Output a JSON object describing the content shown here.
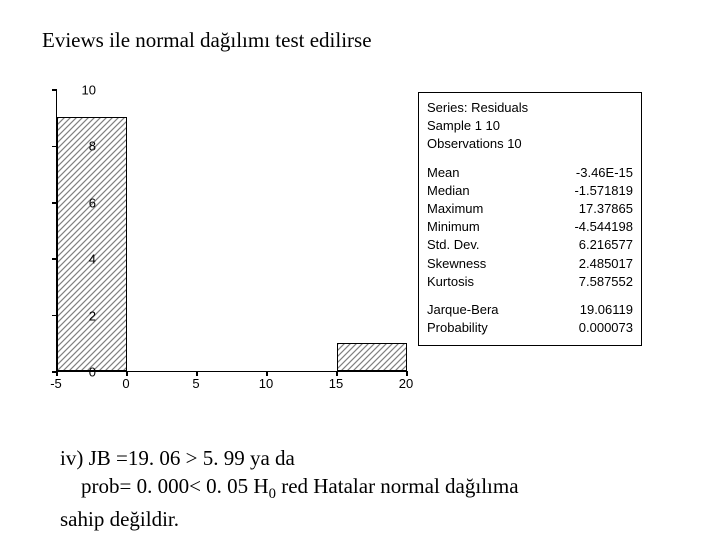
{
  "title_text": "Eviews ile normal dağılımı test edilirse",
  "chart": {
    "type": "histogram",
    "background_color": "#ffffff",
    "axis_color": "#000000",
    "bar_border_color": "#000000",
    "bar_fill_pattern": "diagonal-hatch",
    "bar_fill_light": "#ffffff",
    "bar_fill_dark": "#808080",
    "xlim": [
      -5,
      20
    ],
    "ylim": [
      0,
      10
    ],
    "ytick_step": 2,
    "xtick_step": 5,
    "yticks": [
      0,
      2,
      4,
      6,
      8,
      10
    ],
    "xticks": [
      -5,
      0,
      5,
      10,
      15,
      20
    ],
    "bin_width": 5,
    "bars": [
      {
        "x0": -5,
        "x1": 0,
        "count": 9
      },
      {
        "x0": 15,
        "x1": 20,
        "count": 1
      }
    ],
    "tick_fontsize": 13,
    "tick_fontfamily": "Arial"
  },
  "stats": {
    "header": {
      "series": "Series: Residuals",
      "sample": "Sample 1 10",
      "observations": "Observations 10"
    },
    "rows": [
      {
        "label": "Mean",
        "value": "-3.46E-15"
      },
      {
        "label": "Median",
        "value": "-1.571819"
      },
      {
        "label": "Maximum",
        "value": "17.37865"
      },
      {
        "label": "Minimum",
        "value": "-4.544198"
      },
      {
        "label": "Std. Dev.",
        "value": "6.216577"
      },
      {
        "label": "Skewness",
        "value": "2.485017"
      },
      {
        "label": "Kurtosis",
        "value": "7.587552"
      }
    ],
    "jb": [
      {
        "label": "Jarque-Bera",
        "value": "19.06119"
      },
      {
        "label": "Probability",
        "value": "0.000073"
      }
    ],
    "fontsize": 13,
    "fontfamily": "Arial",
    "border_color": "#000000"
  },
  "conclusion": {
    "line1_a": "iv) JB =19. 06 > 5. 99    ya da",
    "line2_a": "prob= 0. 000< 0. 05       H",
    "line2_sub": "0",
    "line2_b": " red      Hatalar normal dağılıma",
    "line3": "sahip değildir."
  }
}
